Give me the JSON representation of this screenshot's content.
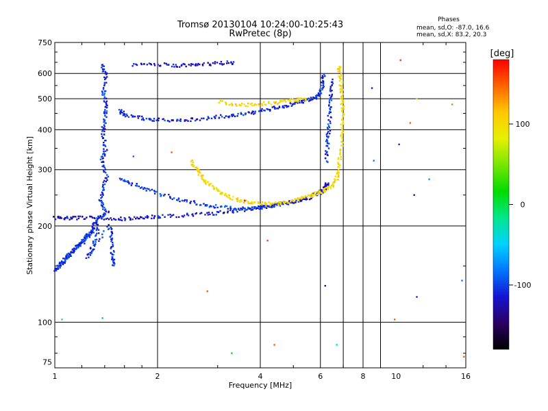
{
  "chart_data": {
    "type": "scatter",
    "title": "Tromsø 20130104 10:24:00-10:25:43",
    "subtitle": "RwPretec (8p)",
    "xlabel": "Frequency [MHz]",
    "ylabel": "Stationary phase Virtual Height [km]",
    "x_scale": "log",
    "y_scale": "log",
    "xlim": [
      1,
      16
    ],
    "ylim": [
      72,
      750
    ],
    "x_ticks": [
      1,
      2,
      4,
      6,
      8,
      10,
      16
    ],
    "x_gridlines": [
      2,
      4,
      6,
      7,
      8,
      9,
      16
    ],
    "y_ticks": [
      75,
      100,
      200,
      300,
      400,
      500,
      600,
      750
    ],
    "y_gridlines": [
      100,
      200,
      300,
      400,
      500,
      600
    ],
    "grid": true,
    "phase_stats": {
      "title": "Phases",
      "line_o": "mean, sd,O: -87.0, 16.6",
      "line_x": "mean, sd,X:  83.2, 20.3"
    },
    "colorbar": {
      "label": "[deg]",
      "range": [
        -180,
        180
      ],
      "ticks": [
        100,
        0,
        -100
      ],
      "stops": [
        "#000000",
        "#2a0064",
        "#1414d2",
        "#0078ff",
        "#00d2ff",
        "#00e68c",
        "#00dc00",
        "#78e600",
        "#e6f000",
        "#ffc800",
        "#ff6400",
        "#ff0000"
      ]
    },
    "series": [
      {
        "points": [
          [
            1.38,
            640
          ],
          [
            1.41,
            590
          ],
          [
            1.39,
            520
          ],
          [
            1.42,
            470
          ],
          [
            1.4,
            430
          ],
          [
            1.38,
            390
          ],
          [
            1.41,
            350
          ],
          [
            1.37,
            320
          ],
          [
            1.42,
            290
          ],
          [
            1.39,
            260
          ],
          [
            1.36,
            240
          ],
          [
            1.43,
            220
          ],
          [
            1.33,
            210
          ],
          [
            1.3,
            200
          ],
          [
            1.27,
            190
          ],
          [
            1.24,
            185
          ],
          [
            1.21,
            180
          ],
          [
            1.18,
            175
          ],
          [
            1.15,
            170
          ],
          [
            1.12,
            165
          ],
          [
            1.09,
            160
          ],
          [
            1.06,
            155
          ],
          [
            1.03,
            150
          ],
          [
            1.0,
            145
          ],
          [
            1.35,
            200
          ],
          [
            1.3,
            175
          ],
          [
            1.25,
            160
          ],
          [
            1.45,
            200
          ],
          [
            1.47,
            180
          ],
          [
            1.48,
            160
          ],
          [
            1.49,
            150
          ]
        ],
        "phase": -105
      },
      {
        "points": [
          [
            1.0,
            212
          ],
          [
            1.1,
            212
          ],
          [
            1.2,
            212
          ],
          [
            1.4,
            212
          ],
          [
            1.6,
            210
          ],
          [
            1.8,
            212
          ],
          [
            2.0,
            214
          ],
          [
            2.4,
            216
          ],
          [
            2.8,
            218
          ],
          [
            3.2,
            221
          ],
          [
            3.6,
            225
          ],
          [
            4.0,
            228
          ],
          [
            4.4,
            232
          ],
          [
            4.8,
            236
          ],
          [
            5.2,
            240
          ],
          [
            5.6,
            246
          ],
          [
            6.0,
            255
          ],
          [
            6.2,
            262
          ],
          [
            6.3,
            275
          ]
        ],
        "phase": -120
      },
      {
        "points": [
          [
            1.55,
            460
          ],
          [
            1.6,
            445
          ],
          [
            1.8,
            435
          ],
          [
            2.0,
            430
          ],
          [
            2.3,
            428
          ],
          [
            2.6,
            432
          ],
          [
            3.0,
            438
          ],
          [
            3.4,
            445
          ],
          [
            3.8,
            452
          ],
          [
            4.2,
            462
          ],
          [
            4.6,
            472
          ],
          [
            5.0,
            482
          ],
          [
            5.4,
            492
          ],
          [
            5.8,
            505
          ],
          [
            6.0,
            520
          ],
          [
            6.1,
            560
          ],
          [
            6.15,
            600
          ]
        ],
        "phase": -110
      },
      {
        "points": [
          [
            1.55,
            280
          ],
          [
            1.7,
            270
          ],
          [
            1.9,
            258
          ],
          [
            2.2,
            245
          ],
          [
            2.5,
            238
          ],
          [
            2.8,
            232
          ],
          [
            3.2,
            228
          ],
          [
            3.6,
            226
          ],
          [
            4.0,
            228
          ],
          [
            4.4,
            232
          ],
          [
            4.8,
            238
          ]
        ],
        "phase": -100
      },
      {
        "points": [
          [
            2.5,
            320
          ],
          [
            2.6,
            300
          ],
          [
            2.7,
            285
          ],
          [
            2.8,
            272
          ],
          [
            3.0,
            258
          ],
          [
            3.2,
            248
          ],
          [
            3.5,
            240
          ],
          [
            3.8,
            236
          ],
          [
            4.2,
            234
          ],
          [
            4.6,
            236
          ],
          [
            5.0,
            240
          ],
          [
            5.4,
            246
          ],
          [
            5.8,
            252
          ],
          [
            6.2,
            258
          ],
          [
            6.5,
            266
          ],
          [
            6.7,
            280
          ],
          [
            6.8,
            310
          ],
          [
            6.9,
            350
          ],
          [
            6.95,
            400
          ],
          [
            7.0,
            450
          ],
          [
            6.95,
            500
          ],
          [
            6.9,
            550
          ],
          [
            6.85,
            600
          ],
          [
            6.8,
            630
          ]
        ],
        "phase": 100
      },
      {
        "points": [
          [
            6.25,
            320
          ],
          [
            6.3,
            360
          ],
          [
            6.35,
            400
          ],
          [
            6.4,
            460
          ],
          [
            6.45,
            520
          ],
          [
            6.5,
            580
          ]
        ],
        "phase": -105
      },
      {
        "points": [
          [
            3.0,
            490
          ],
          [
            3.5,
            478
          ],
          [
            4.0,
            480
          ],
          [
            4.5,
            488
          ],
          [
            5.0,
            495
          ],
          [
            5.5,
            500
          ]
        ],
        "phase": 105
      },
      {
        "points": [
          [
            1.7,
            640
          ],
          [
            2.0,
            640
          ],
          [
            2.3,
            635
          ],
          [
            2.6,
            640
          ],
          [
            3.0,
            645
          ],
          [
            3.4,
            650
          ]
        ],
        "phase": -120
      }
    ],
    "scatter_outliers": [
      {
        "x": 10.3,
        "y": 660,
        "phase": 160
      },
      {
        "x": 8.5,
        "y": 540,
        "phase": -120
      },
      {
        "x": 11.5,
        "y": 500,
        "phase": 100
      },
      {
        "x": 14.6,
        "y": 480,
        "phase": 30
      },
      {
        "x": 11.0,
        "y": 420,
        "phase": 150
      },
      {
        "x": 10.2,
        "y": 360,
        "phase": -110
      },
      {
        "x": 8.6,
        "y": 320,
        "phase": -80
      },
      {
        "x": 11.3,
        "y": 250,
        "phase": -130
      },
      {
        "x": 3.6,
        "y": 240,
        "phase": 170
      },
      {
        "x": 4.2,
        "y": 180,
        "phase": 160
      },
      {
        "x": 6.2,
        "y": 130,
        "phase": -130
      },
      {
        "x": 2.8,
        "y": 125,
        "phase": 150
      },
      {
        "x": 4.4,
        "y": 85,
        "phase": 150
      },
      {
        "x": 6.7,
        "y": 85,
        "phase": -40
      },
      {
        "x": 3.3,
        "y": 80,
        "phase": 10
      },
      {
        "x": 1.38,
        "y": 103,
        "phase": -60
      },
      {
        "x": 1.05,
        "y": 102,
        "phase": -20
      },
      {
        "x": 9.9,
        "y": 102,
        "phase": 150
      },
      {
        "x": 15.8,
        "y": 78,
        "phase": 150
      },
      {
        "x": 15.6,
        "y": 135,
        "phase": -80
      },
      {
        "x": 11.5,
        "y": 120,
        "phase": -110
      },
      {
        "x": 12.5,
        "y": 280,
        "phase": -70
      },
      {
        "x": 2.2,
        "y": 340,
        "phase": 150
      },
      {
        "x": 1.7,
        "y": 330,
        "phase": -90
      }
    ]
  }
}
